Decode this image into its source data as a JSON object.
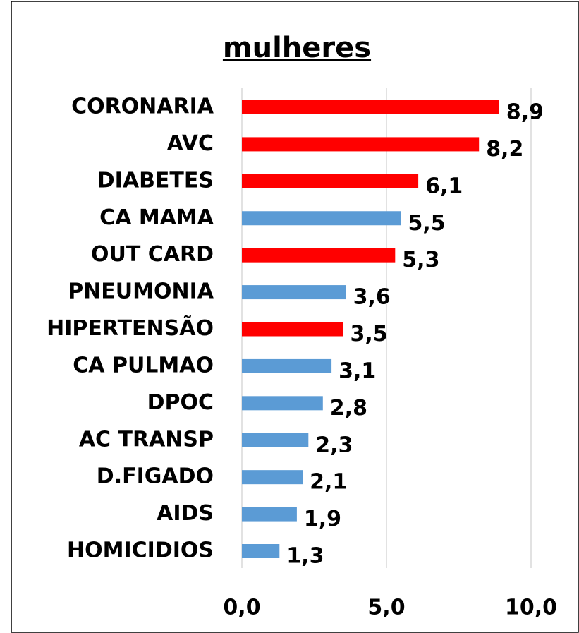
{
  "chart_data": {
    "type": "barh",
    "title": "mulheres",
    "categories": [
      "CORONARIA",
      "AVC",
      "DIABETES",
      "CA MAMA",
      "OUT CARD",
      "PNEUMONIA",
      "HIPERTENSÃO",
      "CA PULMAO",
      "DPOC",
      "AC TRANSP",
      "D.FIGADO",
      "AIDS",
      "HOMICIDIOS"
    ],
    "values": [
      8.9,
      8.2,
      6.1,
      5.5,
      5.3,
      3.6,
      3.5,
      3.1,
      2.8,
      2.3,
      2.1,
      1.9,
      1.3
    ],
    "value_labels": [
      "8,9",
      "8,2",
      "6,1",
      "5,5",
      "5,3",
      "3,6",
      "3,5",
      "3,1",
      "2,8",
      "2,3",
      "2,1",
      "1,9",
      "1,3"
    ],
    "colors": [
      "#ff0000",
      "#ff0000",
      "#ff0000",
      "#5b9bd5",
      "#ff0000",
      "#5b9bd5",
      "#ff0000",
      "#5b9bd5",
      "#5b9bd5",
      "#5b9bd5",
      "#5b9bd5",
      "#5b9bd5",
      "#5b9bd5"
    ],
    "xlim": [
      0,
      10.9
    ],
    "xticks": [
      {
        "value": 0,
        "label": "0,0"
      },
      {
        "value": 5,
        "label": "5,0"
      },
      {
        "value": 10,
        "label": "10,0"
      }
    ],
    "grid": true
  }
}
